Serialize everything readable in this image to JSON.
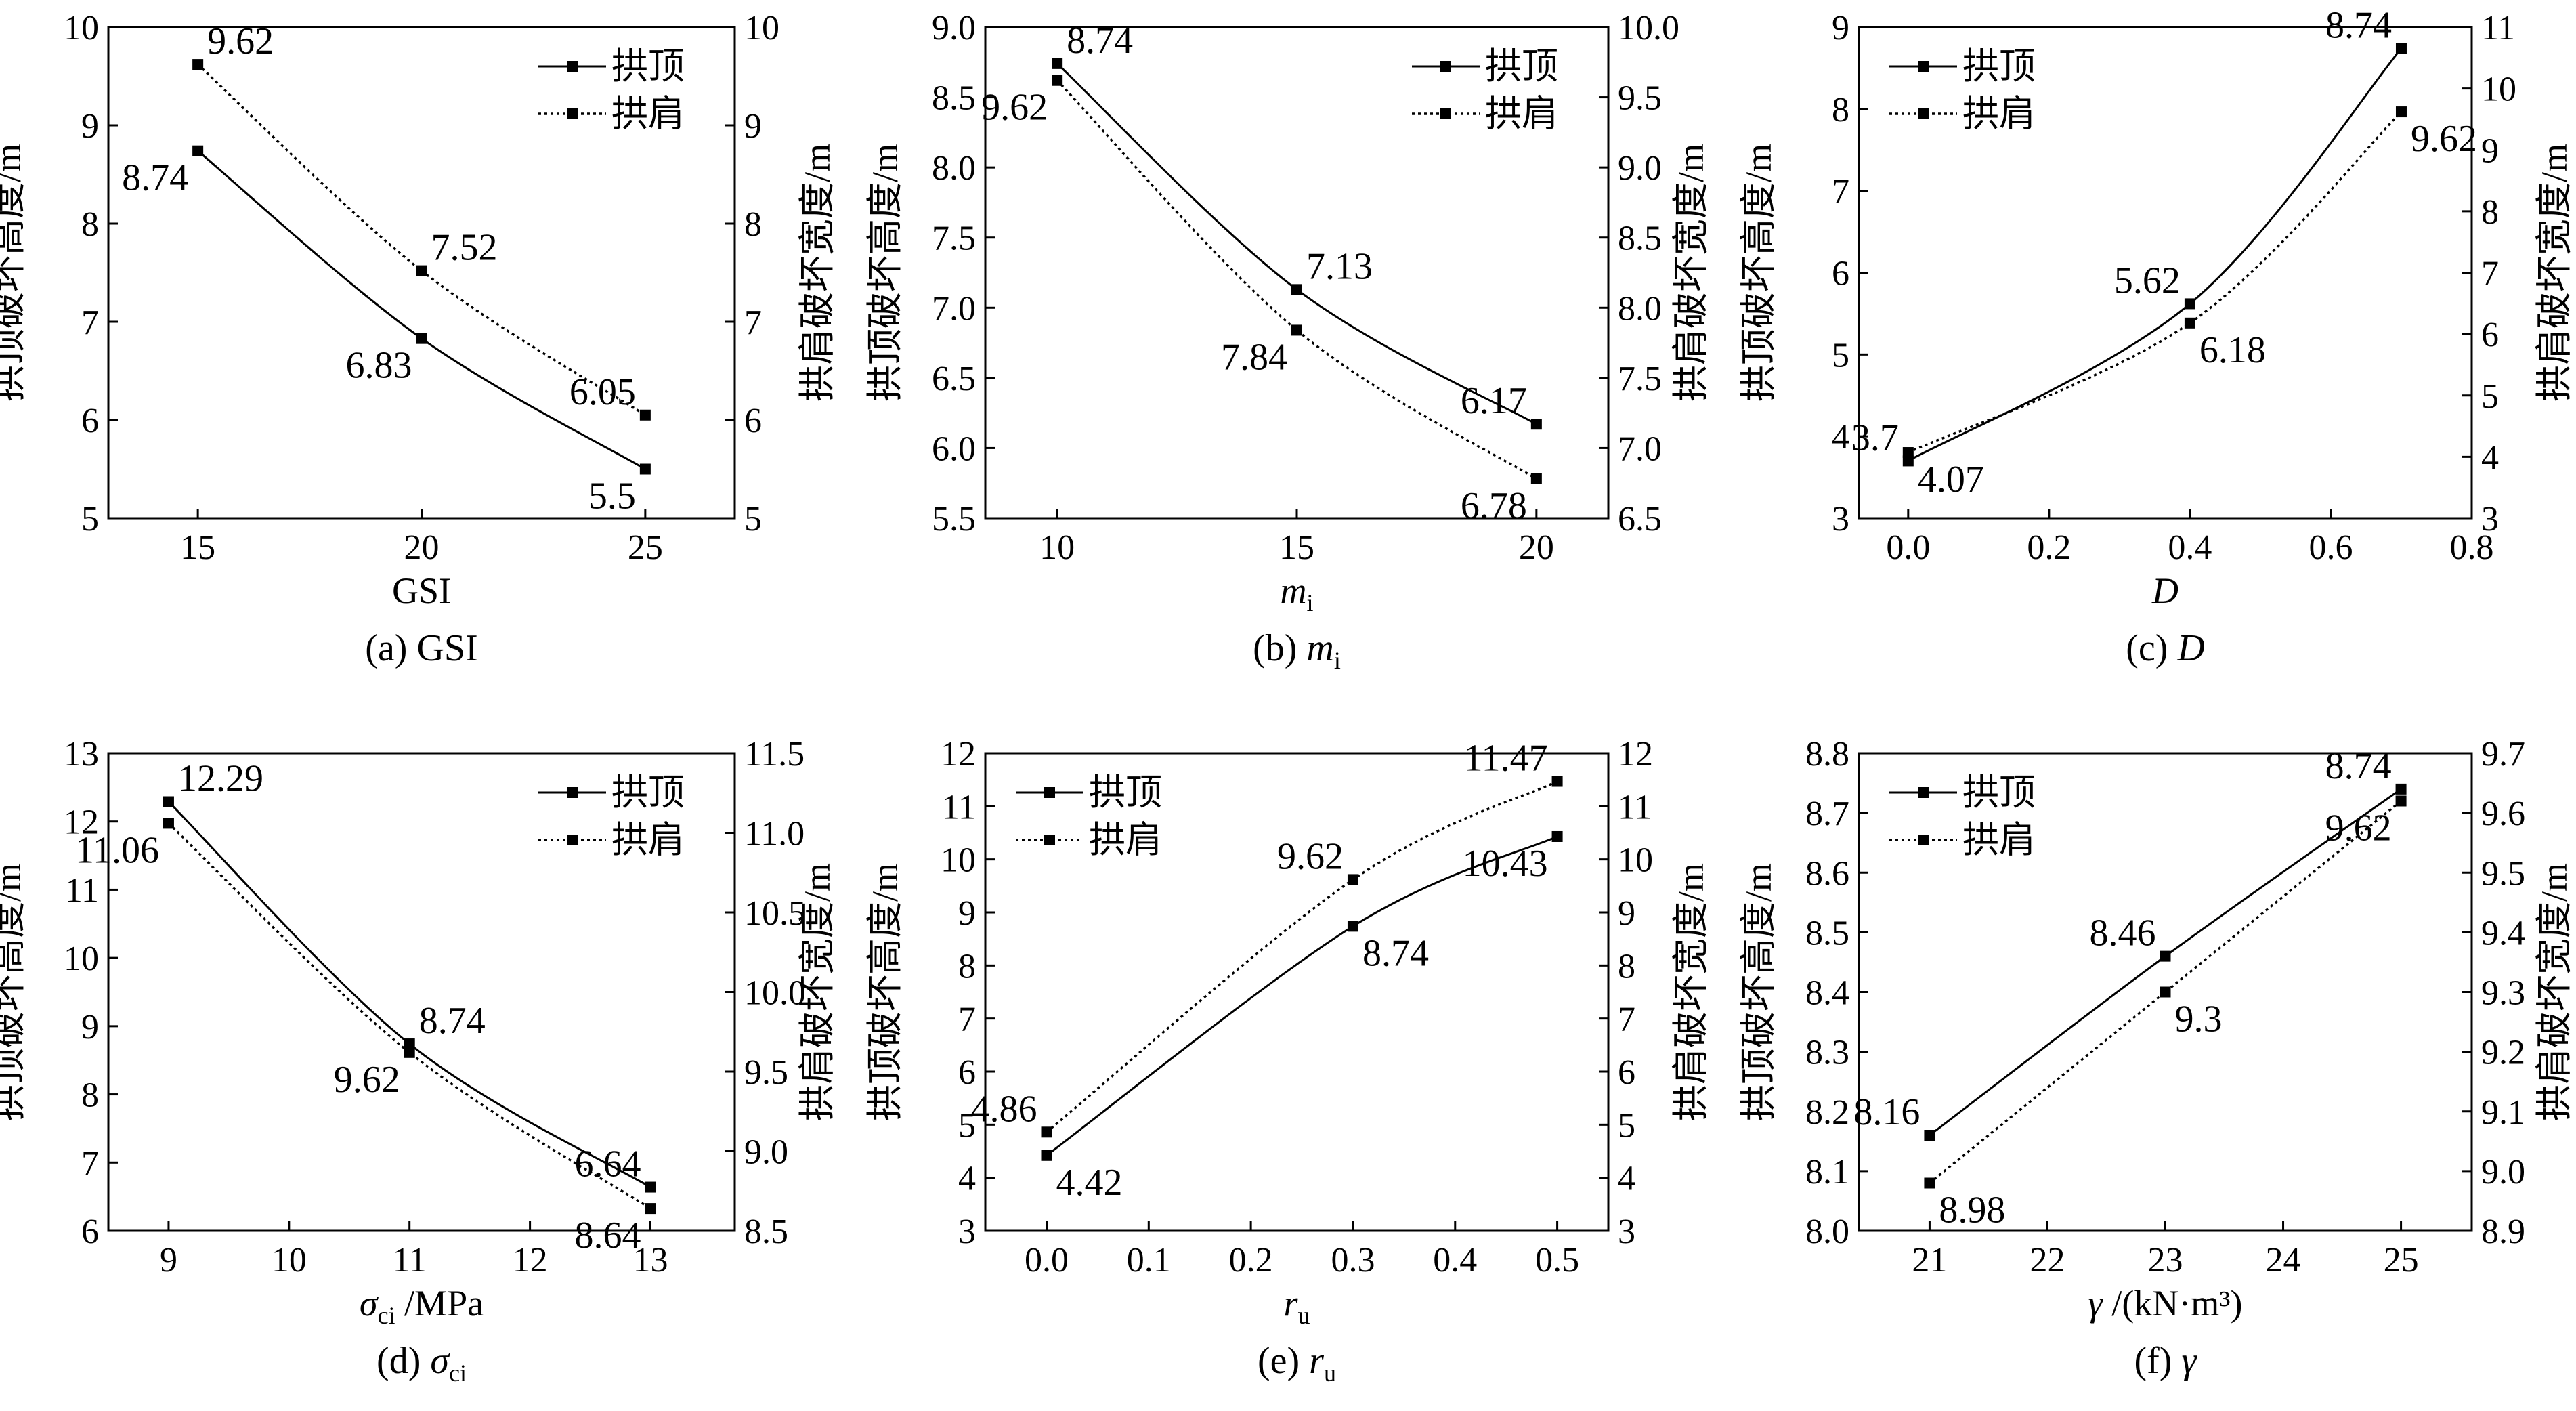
{
  "legend": {
    "crown": "拱顶",
    "shoulder": "拱肩"
  },
  "chart_data": [
    {
      "id": "a",
      "type": "line",
      "caption_prefix": "(a) ",
      "caption_var": "GSI",
      "caption_sub": "",
      "caption_italic": false,
      "xlabel": "GSI",
      "xlabel_var": "GSI",
      "xlabel_sub": "",
      "xlabel_unit": "",
      "xlabel_italic": false,
      "ylabel_left": "拱顶破坏高度/m",
      "ylabel_right": "拱肩破坏宽度/m",
      "x": [
        15,
        20,
        25
      ],
      "xlim": [
        13,
        27
      ],
      "xticks": [
        15,
        20,
        25
      ],
      "xtick_labels": [
        "15",
        "20",
        "25"
      ],
      "ylim_left": [
        5,
        10
      ],
      "yticks_left": [
        "5",
        "6",
        "7",
        "8",
        "9",
        "10"
      ],
      "ylim_right": [
        5,
        10
      ],
      "yticks_right": [
        "5",
        "6",
        "7",
        "8",
        "9",
        "10"
      ],
      "legend_position": "top-right",
      "series": [
        {
          "name": "拱顶",
          "axis": "left",
          "style": "solid",
          "values": [
            8.74,
            6.83,
            5.5
          ],
          "labels": [
            "8.74",
            "6.83",
            "5.5"
          ],
          "label_pos": [
            "bl",
            "bl",
            "bl"
          ]
        },
        {
          "name": "拱肩",
          "axis": "right",
          "style": "dotted",
          "values": [
            9.62,
            7.52,
            6.05
          ],
          "labels": [
            "9.62",
            "7.52",
            "6.05"
          ],
          "label_pos": [
            "ar",
            "ar",
            "al"
          ]
        }
      ]
    },
    {
      "id": "b",
      "type": "line",
      "caption_prefix": "(b) ",
      "caption_var": "m",
      "caption_sub": "i",
      "caption_italic": true,
      "xlabel": "mi",
      "xlabel_var": "m",
      "xlabel_sub": "i",
      "xlabel_unit": "",
      "xlabel_italic": true,
      "ylabel_left": "拱顶破坏高度/m",
      "ylabel_right": "拱肩破坏宽度/m",
      "x": [
        10,
        15,
        20
      ],
      "xlim": [
        8.5,
        21.5
      ],
      "xticks": [
        10,
        15,
        20
      ],
      "xtick_labels": [
        "10",
        "15",
        "20"
      ],
      "ylim_left": [
        5.5,
        9.0
      ],
      "yticks_left": [
        "5.5",
        "6.0",
        "6.5",
        "7.0",
        "7.5",
        "8.0",
        "8.5",
        "9.0"
      ],
      "ylim_right": [
        6.5,
        10.0
      ],
      "yticks_right": [
        "6.5",
        "7.0",
        "7.5",
        "8.0",
        "8.5",
        "9.0",
        "9.5",
        "10.0"
      ],
      "legend_position": "top-right",
      "series": [
        {
          "name": "拱顶",
          "axis": "left",
          "style": "solid",
          "values": [
            8.74,
            7.13,
            6.17
          ],
          "labels": [
            "8.74",
            "7.13",
            "6.17"
          ],
          "label_pos": [
            "ar",
            "ar",
            "al"
          ]
        },
        {
          "name": "拱肩",
          "axis": "right",
          "style": "dotted",
          "values": [
            9.62,
            7.84,
            6.78
          ],
          "labels": [
            "9.62",
            "7.84",
            "6.78"
          ],
          "label_pos": [
            "bl",
            "bl",
            "bl"
          ]
        }
      ]
    },
    {
      "id": "c",
      "type": "line",
      "caption_prefix": "(c) ",
      "caption_var": "D",
      "caption_sub": "",
      "caption_italic": true,
      "xlabel": "D",
      "xlabel_var": "D",
      "xlabel_sub": "",
      "xlabel_unit": "",
      "xlabel_italic": true,
      "ylabel_left": "拱顶破坏高度/m",
      "ylabel_right": "拱肩破坏宽度/m",
      "x": [
        0.0,
        0.4,
        0.7
      ],
      "xlim": [
        -0.07,
        0.8
      ],
      "xticks": [
        0.0,
        0.2,
        0.4,
        0.6,
        0.8
      ],
      "xtick_labels": [
        "0.0",
        "0.2",
        "0.4",
        "0.6",
        "0.8"
      ],
      "ylim_left": [
        3,
        9
      ],
      "yticks_left": [
        "3",
        "4",
        "5",
        "6",
        "7",
        "8",
        "9"
      ],
      "ylim_right": [
        3,
        11
      ],
      "yticks_right": [
        "3",
        "4",
        "5",
        "6",
        "7",
        "8",
        "9",
        "10",
        "11"
      ],
      "legend_position": "top-left",
      "series": [
        {
          "name": "拱顶",
          "axis": "left",
          "style": "solid",
          "values": [
            3.7,
            5.62,
            8.74
          ],
          "labels": [
            "3.7",
            "5.62",
            "8.74"
          ],
          "label_pos": [
            "al",
            "al",
            "al"
          ]
        },
        {
          "name": "拱肩",
          "axis": "right",
          "style": "dotted",
          "values": [
            4.07,
            6.18,
            9.62
          ],
          "labels": [
            "4.07",
            "6.18",
            "9.62"
          ],
          "label_pos": [
            "br",
            "br",
            "br"
          ]
        }
      ]
    },
    {
      "id": "d",
      "type": "line",
      "caption_prefix": "(d) ",
      "caption_var": "σ",
      "caption_sub": "ci",
      "caption_italic": true,
      "xlabel": "σci /MPa",
      "xlabel_var": "σ",
      "xlabel_sub": "ci",
      "xlabel_unit": " /MPa",
      "xlabel_italic": true,
      "ylabel_left": "拱顶破坏高度/m",
      "ylabel_right": "拱肩破坏宽度/m",
      "x": [
        9,
        11,
        13
      ],
      "xlim": [
        8.5,
        13.7
      ],
      "xticks": [
        9,
        10,
        11,
        12,
        13
      ],
      "xtick_labels": [
        "9",
        "10",
        "11",
        "12",
        "13"
      ],
      "ylim_left": [
        6,
        13
      ],
      "yticks_left": [
        "6",
        "7",
        "8",
        "9",
        "10",
        "11",
        "12",
        "13"
      ],
      "ylim_right": [
        8.5,
        11.5
      ],
      "yticks_right": [
        "8.5",
        "9.0",
        "9.5",
        "10.0",
        "10.5",
        "11.0",
        "11.5"
      ],
      "legend_position": "top-right",
      "series": [
        {
          "name": "拱顶",
          "axis": "left",
          "style": "solid",
          "values": [
            12.29,
            8.74,
            6.64
          ],
          "labels": [
            "12.29",
            "8.74",
            "6.64"
          ],
          "label_pos": [
            "ar",
            "ar",
            "al"
          ]
        },
        {
          "name": "拱肩",
          "axis": "right",
          "style": "dotted",
          "values": [
            11.06,
            9.62,
            8.64
          ],
          "labels": [
            "11.06",
            "9.62",
            "8.64"
          ],
          "label_pos": [
            "bl",
            "bl",
            "bl"
          ]
        }
      ]
    },
    {
      "id": "e",
      "type": "line",
      "caption_prefix": "(e) ",
      "caption_var": "r",
      "caption_sub": "u",
      "caption_italic": true,
      "xlabel": "ru",
      "xlabel_var": "r",
      "xlabel_sub": "u",
      "xlabel_unit": "",
      "xlabel_italic": true,
      "ylabel_left": "拱顶破坏高度/m",
      "ylabel_right": "拱肩破坏宽度/m",
      "x": [
        0.0,
        0.3,
        0.5
      ],
      "xlim": [
        -0.06,
        0.55
      ],
      "xticks": [
        0.0,
        0.1,
        0.2,
        0.3,
        0.4,
        0.5
      ],
      "xtick_labels": [
        "0.0",
        "0.1",
        "0.2",
        "0.3",
        "0.4",
        "0.5"
      ],
      "ylim_left": [
        3,
        12
      ],
      "yticks_left": [
        "3",
        "4",
        "5",
        "6",
        "7",
        "8",
        "9",
        "10",
        "11",
        "12"
      ],
      "ylim_right": [
        3,
        12
      ],
      "yticks_right": [
        "3",
        "4",
        "5",
        "6",
        "7",
        "8",
        "9",
        "10",
        "11",
        "12"
      ],
      "legend_position": "top-left",
      "series": [
        {
          "name": "拱顶",
          "axis": "left",
          "style": "solid",
          "values": [
            4.42,
            8.74,
            10.43
          ],
          "labels": [
            "4.42",
            "8.74",
            "10.43"
          ],
          "label_pos": [
            "br",
            "br",
            "bl"
          ]
        },
        {
          "name": "拱肩",
          "axis": "right",
          "style": "dotted",
          "values": [
            4.86,
            9.62,
            11.47
          ],
          "labels": [
            "4.86",
            "9.62",
            "11.47"
          ],
          "label_pos": [
            "al",
            "al",
            "al"
          ]
        }
      ]
    },
    {
      "id": "f",
      "type": "line",
      "caption_prefix": "(f) ",
      "caption_var": "γ",
      "caption_sub": "",
      "caption_italic": true,
      "xlabel": "γ /(kN·m³)",
      "xlabel_var": "γ",
      "xlabel_sub": "",
      "xlabel_unit": " /(kN·m³)",
      "xlabel_italic": true,
      "ylabel_left": "拱顶破坏高度/m",
      "ylabel_right": "拱肩破坏宽度/m",
      "x": [
        21,
        23,
        25
      ],
      "xlim": [
        20.4,
        25.6
      ],
      "xticks": [
        21,
        22,
        23,
        24,
        25
      ],
      "xtick_labels": [
        "21",
        "22",
        "23",
        "24",
        "25"
      ],
      "ylim_left": [
        8.0,
        8.8
      ],
      "yticks_left": [
        "8.0",
        "8.1",
        "8.2",
        "8.3",
        "8.4",
        "8.5",
        "8.6",
        "8.7",
        "8.8"
      ],
      "ylim_right": [
        8.9,
        9.7
      ],
      "yticks_right": [
        "8.9",
        "9.0",
        "9.1",
        "9.2",
        "9.3",
        "9.4",
        "9.5",
        "9.6",
        "9.7"
      ],
      "legend_position": "top-left",
      "series": [
        {
          "name": "拱顶",
          "axis": "left",
          "style": "solid",
          "values": [
            8.16,
            8.46,
            8.74
          ],
          "labels": [
            "8.16",
            "8.46",
            "8.74"
          ],
          "label_pos": [
            "al",
            "al",
            "al"
          ]
        },
        {
          "name": "拱肩",
          "axis": "right",
          "style": "dotted",
          "values": [
            8.98,
            9.3,
            9.62
          ],
          "labels": [
            "8.98",
            "9.3",
            "9.62"
          ],
          "label_pos": [
            "br",
            "br",
            "bl"
          ]
        }
      ]
    }
  ]
}
